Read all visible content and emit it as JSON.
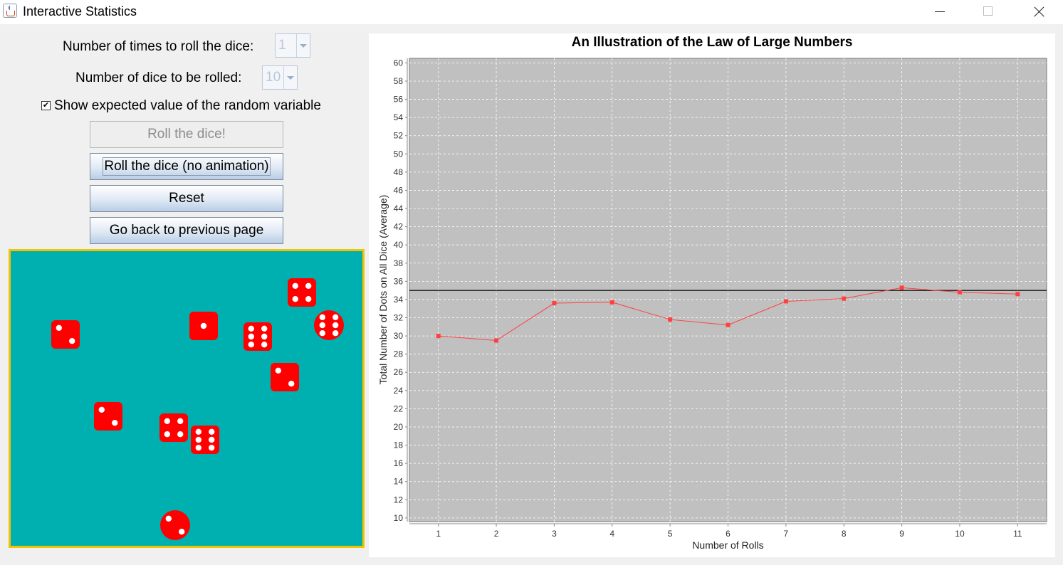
{
  "window": {
    "title": "Interactive Statistics"
  },
  "controls": {
    "rolls_label": "Number of times to roll the dice:",
    "rolls_value": "1",
    "dice_label": "Number of dice to be rolled:",
    "dice_value": "10",
    "show_expected_label": "Show expected value of the random variable",
    "show_expected_checked": true,
    "roll_button": "Roll the dice!",
    "roll_no_anim_button": "Roll the dice (no animation)",
    "reset_button": "Reset",
    "back_button": "Go back to previous page"
  },
  "dice_panel": {
    "background_color": "#00b0b0",
    "border_color": "#f2c400",
    "die_color": "#ff0000",
    "dice": [
      {
        "face": 4,
        "shape": "square"
      },
      {
        "face": 2,
        "shape": "square"
      },
      {
        "face": 1,
        "shape": "square"
      },
      {
        "face": 6,
        "shape": "square"
      },
      {
        "face": 6,
        "shape": "round"
      },
      {
        "face": 2,
        "shape": "square"
      },
      {
        "face": 2,
        "shape": "square"
      },
      {
        "face": 4,
        "shape": "square"
      },
      {
        "face": 6,
        "shape": "square"
      },
      {
        "face": 2,
        "shape": "round"
      }
    ]
  },
  "chart_data": {
    "type": "line",
    "title": "An Illustration of the Law of Large Numbers",
    "xlabel": "Number of Rolls",
    "ylabel": "Total Number of Dots on All Dice (Average)",
    "x": [
      1,
      2,
      3,
      4,
      5,
      6,
      7,
      8,
      9,
      10,
      11
    ],
    "series": [
      {
        "values": [
          30.0,
          29.5,
          33.6,
          33.7,
          31.8,
          31.2,
          33.8,
          34.1,
          35.3,
          34.8,
          34.6
        ],
        "color": "#ff4040"
      }
    ],
    "expected_value": 35,
    "expected_line_color": "#000000",
    "xlim": [
      0.5,
      11.5
    ],
    "ylim": [
      9.6,
      60.5
    ],
    "yticks": [
      10,
      12,
      14,
      16,
      18,
      20,
      22,
      24,
      26,
      28,
      30,
      32,
      34,
      36,
      38,
      40,
      42,
      44,
      46,
      48,
      50,
      52,
      54,
      56,
      58,
      60
    ],
    "grid": true,
    "plot_background": "#c0c0c0",
    "legend": "none"
  }
}
